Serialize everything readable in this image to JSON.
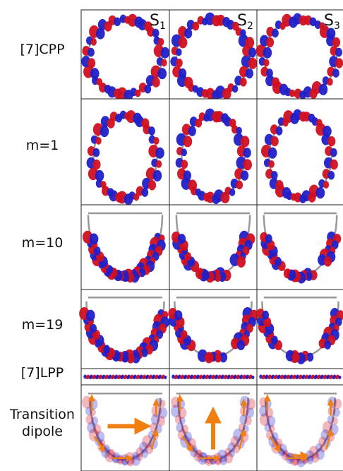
{
  "figure": {
    "columns": [
      {
        "symbol": "S",
        "sub": "1"
      },
      {
        "symbol": "S",
        "sub": "2"
      },
      {
        "symbol": "S",
        "sub": "3"
      }
    ],
    "rows": [
      "[7]CPP",
      "m=1",
      "m=10",
      "m=19",
      "[7]LPP",
      "Transition\ndipole"
    ]
  }
}
